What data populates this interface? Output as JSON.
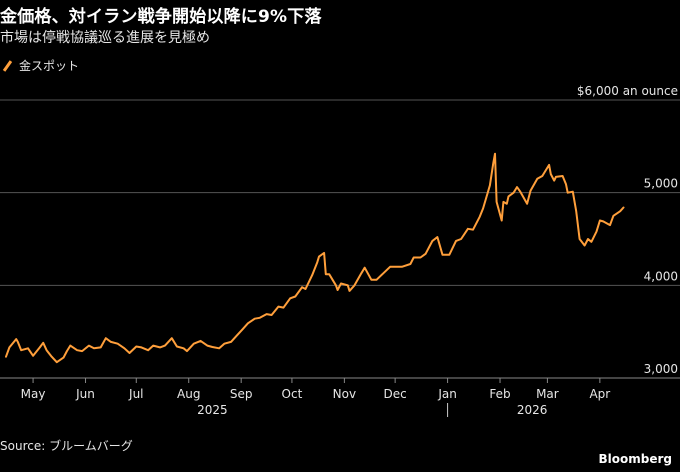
{
  "title": "金価格、対イラン戦争開始以降に9%下落",
  "subtitle": "市場は停戦協議巡る進展を見極め",
  "source": "Source: ブルームバーグ",
  "brand": "Bloomberg",
  "colors": {
    "series": "#ff9f3b",
    "grid": "#555555",
    "background": "#000000"
  },
  "chart_data": {
    "type": "line",
    "ylabel": "$6,000 an ounce",
    "ylim": [
      3000,
      6000
    ],
    "yticks": [
      {
        "value": 3000,
        "label": "3,000"
      },
      {
        "value": 4000,
        "label": "4,000"
      },
      {
        "value": 5000,
        "label": "5,000"
      },
      {
        "value": 6000,
        "label": "$6,000 an ounce"
      }
    ],
    "xticks": [
      {
        "date": "2025-05-01",
        "label": "May"
      },
      {
        "date": "2025-06-01",
        "label": "Jun"
      },
      {
        "date": "2025-07-01",
        "label": "Jul"
      },
      {
        "date": "2025-08-01",
        "label": "Aug"
      },
      {
        "date": "2025-09-01",
        "label": "Sep"
      },
      {
        "date": "2025-10-01",
        "label": "Oct"
      },
      {
        "date": "2025-11-01",
        "label": "Nov"
      },
      {
        "date": "2025-12-01",
        "label": "Dec"
      },
      {
        "date": "2026-01-01",
        "label": "Jan"
      },
      {
        "date": "2026-02-01",
        "label": "Feb"
      },
      {
        "date": "2026-03-01",
        "label": "Mar"
      },
      {
        "date": "2026-04-01",
        "label": "Apr"
      }
    ],
    "years": [
      {
        "date": "2025-08-15",
        "label": "2025"
      },
      {
        "date": "2026-02-20",
        "label": "2026"
      }
    ],
    "xlim": [
      "2025-04-15",
      "2026-04-20"
    ],
    "legend": "top-left",
    "series": [
      {
        "name": "金スポット",
        "points": [
          [
            "2025-04-15",
            3230
          ],
          [
            "2025-04-17",
            3330
          ],
          [
            "2025-04-21",
            3420
          ],
          [
            "2025-04-22",
            3390
          ],
          [
            "2025-04-24",
            3300
          ],
          [
            "2025-04-28",
            3320
          ],
          [
            "2025-05-01",
            3240
          ],
          [
            "2025-05-05",
            3330
          ],
          [
            "2025-05-07",
            3380
          ],
          [
            "2025-05-09",
            3300
          ],
          [
            "2025-05-12",
            3230
          ],
          [
            "2025-05-15",
            3170
          ],
          [
            "2025-05-19",
            3220
          ],
          [
            "2025-05-21",
            3290
          ],
          [
            "2025-05-23",
            3350
          ],
          [
            "2025-05-27",
            3300
          ],
          [
            "2025-05-30",
            3290
          ],
          [
            "2025-06-03",
            3350
          ],
          [
            "2025-06-06",
            3320
          ],
          [
            "2025-06-10",
            3330
          ],
          [
            "2025-06-13",
            3430
          ],
          [
            "2025-06-16",
            3390
          ],
          [
            "2025-06-20",
            3370
          ],
          [
            "2025-06-24",
            3320
          ],
          [
            "2025-06-27",
            3270
          ],
          [
            "2025-07-01",
            3340
          ],
          [
            "2025-07-04",
            3330
          ],
          [
            "2025-07-08",
            3300
          ],
          [
            "2025-07-11",
            3350
          ],
          [
            "2025-07-15",
            3330
          ],
          [
            "2025-07-18",
            3350
          ],
          [
            "2025-07-22",
            3430
          ],
          [
            "2025-07-25",
            3340
          ],
          [
            "2025-07-29",
            3320
          ],
          [
            "2025-07-31",
            3290
          ],
          [
            "2025-08-04",
            3370
          ],
          [
            "2025-08-08",
            3400
          ],
          [
            "2025-08-12",
            3350
          ],
          [
            "2025-08-15",
            3335
          ],
          [
            "2025-08-19",
            3320
          ],
          [
            "2025-08-22",
            3370
          ],
          [
            "2025-08-26",
            3390
          ],
          [
            "2025-08-29",
            3450
          ],
          [
            "2025-09-02",
            3530
          ],
          [
            "2025-09-05",
            3590
          ],
          [
            "2025-09-09",
            3640
          ],
          [
            "2025-09-12",
            3650
          ],
          [
            "2025-09-16",
            3690
          ],
          [
            "2025-09-19",
            3680
          ],
          [
            "2025-09-23",
            3770
          ],
          [
            "2025-09-26",
            3760
          ],
          [
            "2025-09-30",
            3860
          ],
          [
            "2025-10-03",
            3880
          ],
          [
            "2025-10-07",
            3980
          ],
          [
            "2025-10-09",
            3960
          ],
          [
            "2025-10-13",
            4110
          ],
          [
            "2025-10-16",
            4250
          ],
          [
            "2025-10-17",
            4310
          ],
          [
            "2025-10-20",
            4350
          ],
          [
            "2025-10-21",
            4120
          ],
          [
            "2025-10-23",
            4120
          ],
          [
            "2025-10-27",
            4000
          ],
          [
            "2025-10-28",
            3950
          ],
          [
            "2025-10-30",
            4020
          ],
          [
            "2025-11-03",
            4000
          ],
          [
            "2025-11-04",
            3940
          ],
          [
            "2025-11-07",
            4000
          ],
          [
            "2025-11-11",
            4130
          ],
          [
            "2025-11-13",
            4190
          ],
          [
            "2025-11-17",
            4060
          ],
          [
            "2025-11-20",
            4060
          ],
          [
            "2025-11-24",
            4130
          ],
          [
            "2025-11-28",
            4200
          ],
          [
            "2025-12-02",
            4200
          ],
          [
            "2025-12-05",
            4200
          ],
          [
            "2025-12-10",
            4230
          ],
          [
            "2025-12-12",
            4300
          ],
          [
            "2025-12-16",
            4300
          ],
          [
            "2025-12-19",
            4340
          ],
          [
            "2025-12-23",
            4480
          ],
          [
            "2025-12-26",
            4520
          ],
          [
            "2025-12-29",
            4330
          ],
          [
            "2026-01-02",
            4330
          ],
          [
            "2026-01-06",
            4480
          ],
          [
            "2026-01-09",
            4500
          ],
          [
            "2026-01-13",
            4610
          ],
          [
            "2026-01-16",
            4600
          ],
          [
            "2026-01-20",
            4740
          ],
          [
            "2026-01-22",
            4830
          ],
          [
            "2026-01-26",
            5080
          ],
          [
            "2026-01-28",
            5320
          ],
          [
            "2026-01-29",
            5420
          ],
          [
            "2026-01-30",
            4900
          ],
          [
            "2026-02-02",
            4700
          ],
          [
            "2026-02-03",
            4900
          ],
          [
            "2026-02-05",
            4880
          ],
          [
            "2026-02-06",
            4960
          ],
          [
            "2026-02-09",
            5000
          ],
          [
            "2026-02-11",
            5060
          ],
          [
            "2026-02-13",
            5010
          ],
          [
            "2026-02-17",
            4880
          ],
          [
            "2026-02-19",
            5020
          ],
          [
            "2026-02-23",
            5150
          ],
          [
            "2026-02-26",
            5180
          ],
          [
            "2026-03-02",
            5300
          ],
          [
            "2026-03-03",
            5200
          ],
          [
            "2026-03-05",
            5130
          ],
          [
            "2026-03-06",
            5170
          ],
          [
            "2026-03-10",
            5180
          ],
          [
            "2026-03-12",
            5090
          ],
          [
            "2026-03-13",
            5000
          ],
          [
            "2026-03-16",
            5010
          ],
          [
            "2026-03-18",
            4800
          ],
          [
            "2026-03-20",
            4500
          ],
          [
            "2026-03-23",
            4430
          ],
          [
            "2026-03-25",
            4500
          ],
          [
            "2026-03-27",
            4470
          ],
          [
            "2026-03-30",
            4580
          ],
          [
            "2026-04-01",
            4700
          ],
          [
            "2026-04-03",
            4690
          ],
          [
            "2026-04-07",
            4650
          ],
          [
            "2026-04-09",
            4750
          ],
          [
            "2026-04-13",
            4800
          ],
          [
            "2026-04-15",
            4840
          ]
        ]
      }
    ]
  }
}
